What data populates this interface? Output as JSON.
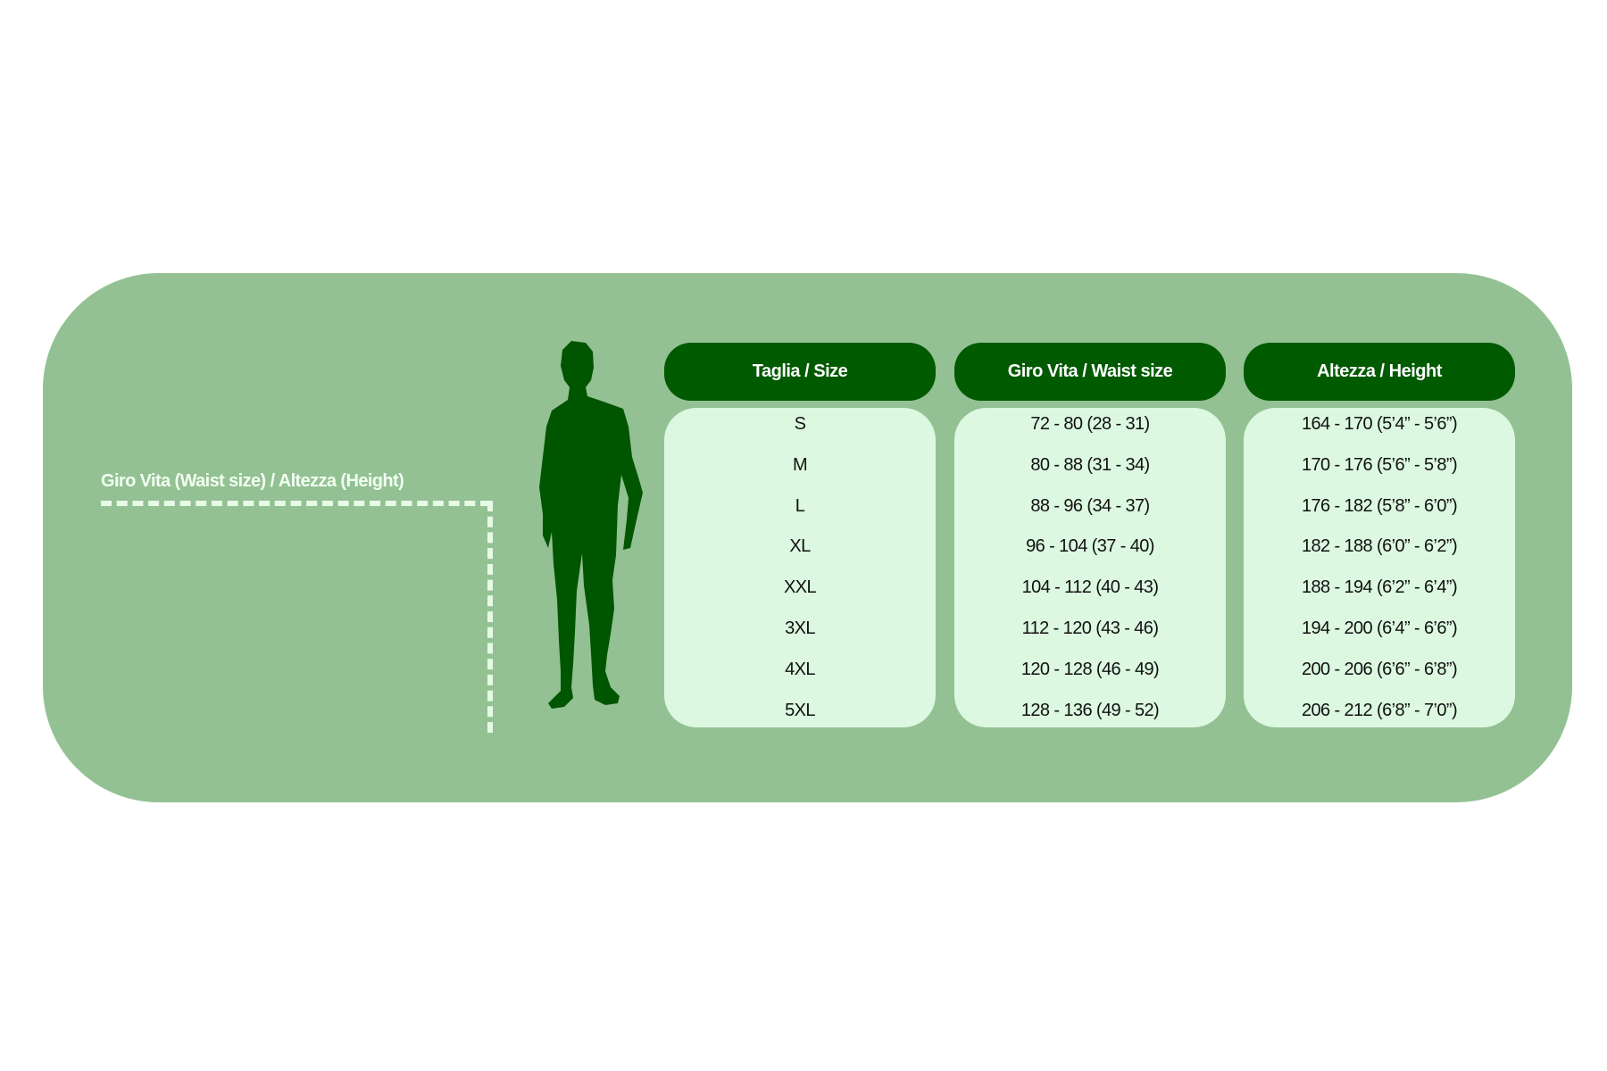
{
  "measure_label": "Giro Vita  (Waist size) / Altezza (Height)",
  "colors": {
    "panel": "#93c193",
    "header": "#005a00",
    "body": "#dcf8e0",
    "silhouette": "#005500"
  },
  "table": {
    "headers": [
      "Taglia / Size",
      "Giro Vita / Waist size",
      "Altezza / Height"
    ],
    "sizes": [
      "S",
      "M",
      "L",
      "XL",
      "XXL",
      "3XL",
      "4XL",
      "5XL"
    ],
    "waist": [
      "72 - 80 (28 - 31)",
      "80 - 88 (31 - 34)",
      "88 - 96 (34 - 37)",
      "96 - 104 (37 - 40)",
      "104 - 112 (40 - 43)",
      "112 - 120 (43 - 46)",
      "120 - 128 (46 - 49)",
      "128 - 136 (49 - 52)"
    ],
    "height": [
      "164 - 170 (5’4” - 5’6”)",
      "170 - 176 (5’6” - 5’8”)",
      "176 - 182 (5’8” - 6’0”)",
      "182 - 188 (6’0” - 6’2”)",
      "188 - 194 (6’2” - 6’4”)",
      "194 - 200 (6’4” - 6’6”)",
      "200 - 206 (6’6” - 6’8”)",
      "206 - 212 (6’8” - 7’0”)"
    ]
  }
}
